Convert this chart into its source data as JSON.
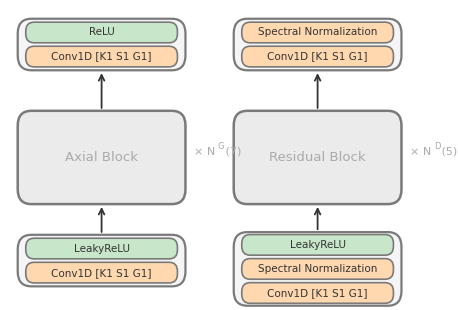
{
  "fig_bg": "#ffffff",
  "group_bg": "#f5f5f5",
  "block_bg": "#ebebeb",
  "green_color": "#c8e6c9",
  "orange_color": "#ffd8b0",
  "block_border": "#7a7a7a",
  "group_border": "#7a7a7a",
  "box_border": "#7a7a7a",
  "arrow_color": "#333333",
  "block_text_color": "#aaaaaa",
  "box_text_color": "#333333",
  "repeat_color": "#aaaaaa",
  "left_block_label": "Axial Block",
  "right_block_label": "Residual Block",
  "left_top_boxes": [
    "ReLU",
    "Conv1D [K1 S1 G1]"
  ],
  "left_top_colors": [
    "#c8e6c9",
    "#ffd8b0"
  ],
  "left_bottom_boxes": [
    "LeakyReLU",
    "Conv1D [K1 S1 G1]"
  ],
  "left_bottom_colors": [
    "#c8e6c9",
    "#ffd8b0"
  ],
  "right_top_boxes": [
    "Spectral Normalization",
    "Conv1D [K1 S1 G1]"
  ],
  "right_top_colors": [
    "#ffd8b0",
    "#ffd8b0"
  ],
  "right_bottom_boxes": [
    "LeakyReLU",
    "Spectral Normalization",
    "Conv1D [K1 S1 G1]"
  ],
  "right_bottom_colors": [
    "#c8e6c9",
    "#ffd8b0",
    "#ffd8b0"
  ]
}
